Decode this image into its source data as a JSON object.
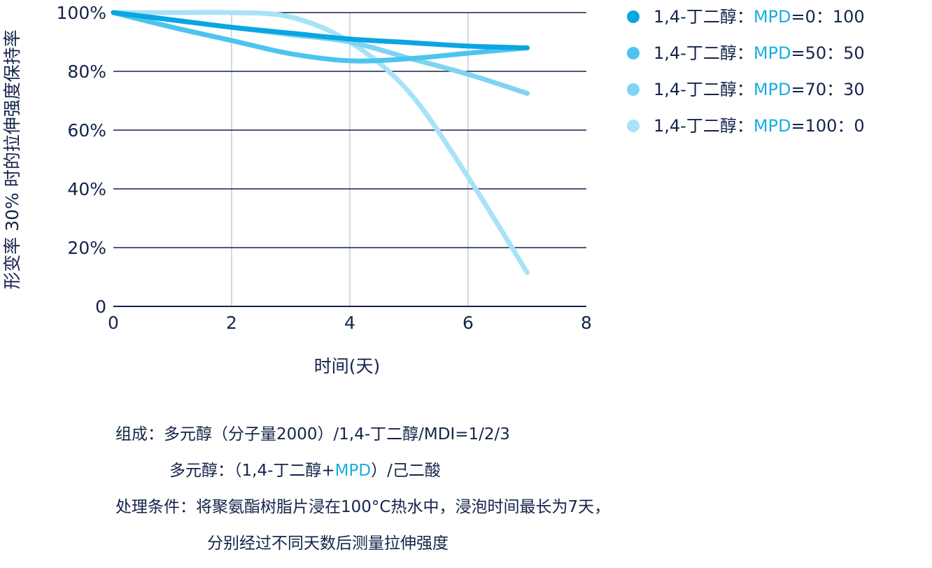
{
  "chart_data": {
    "type": "line",
    "title": "",
    "xlabel": "时间(天)",
    "ylabel": "形变率 30% 时的拉伸强度保持率",
    "xlim": [
      0,
      8
    ],
    "ylim": [
      0,
      100
    ],
    "x_ticks": [
      "0",
      "2",
      "4",
      "6",
      "8"
    ],
    "y_ticks": [
      "0",
      "20%",
      "40%",
      "60%",
      "80%",
      "100%"
    ],
    "grid": "horizontal and vertical",
    "legend_position": "top-right",
    "series": [
      {
        "name": "1,4-丁二醇：MPD=0：100",
        "color": "#0aa6e2",
        "points": [
          [
            0,
            100
          ],
          [
            1,
            97.5
          ],
          [
            2,
            95
          ],
          [
            3,
            93
          ],
          [
            4,
            91
          ],
          [
            5,
            89.8
          ],
          [
            6,
            88.6
          ],
          [
            7,
            88
          ]
        ]
      },
      {
        "name": "1,4-丁二醇：MPD=50：50",
        "color": "#4cc4ee",
        "points": [
          [
            0,
            100
          ],
          [
            1,
            95
          ],
          [
            2,
            90.5
          ],
          [
            3,
            86
          ],
          [
            4,
            83.6
          ],
          [
            5,
            84.3
          ],
          [
            6,
            86.2
          ],
          [
            7,
            88
          ]
        ]
      },
      {
        "name": "1,4-丁二醇：MPD=70：30",
        "color": "#7fd3f3",
        "points": [
          [
            0,
            100
          ],
          [
            1,
            97.5
          ],
          [
            2,
            95
          ],
          [
            3,
            92.5
          ],
          [
            4,
            90
          ],
          [
            5,
            84.5
          ],
          [
            6,
            79
          ],
          [
            7,
            72.5
          ]
        ]
      },
      {
        "name": "1,4-丁二醇：MPD=100：0",
        "color": "#a8e2f8",
        "points": [
          [
            0,
            100
          ],
          [
            1,
            100
          ],
          [
            2,
            100
          ],
          [
            3,
            98.5
          ],
          [
            4,
            90
          ],
          [
            5,
            73
          ],
          [
            6,
            44
          ],
          [
            7,
            11.5
          ]
        ]
      }
    ]
  },
  "legend": [
    {
      "prefix": "1,4-丁二醇：",
      "mpd": "MPD",
      "suffix": "=0：100",
      "color": "#0aa6e2"
    },
    {
      "prefix": "1,4-丁二醇：",
      "mpd": "MPD",
      "suffix": "=50：50",
      "color": "#4cc4ee"
    },
    {
      "prefix": "1,4-丁二醇：",
      "mpd": "MPD",
      "suffix": "=70：30",
      "color": "#7fd3f3"
    },
    {
      "prefix": "1,4-丁二醇：",
      "mpd": "MPD",
      "suffix": "=100：0",
      "color": "#a8e2f8"
    }
  ],
  "notes": {
    "line1": "组成：多元醇（分子量2000）/1,4-丁二醇/MDI=1/2/3",
    "line2_a": "多元醇：（1,4-丁二醇+",
    "line2_mpd": "MPD",
    "line2_b": "）/己二酸",
    "line3": "处理条件：将聚氨酯树脂片浸在100°C热水中，浸泡时间最长为7天，",
    "line4": "分别经过不同天数后测量拉伸强度"
  },
  "colors": {
    "axis": "#14244a",
    "vertical_grid": "#c6ccd8",
    "text": "#14244a",
    "highlight": "#1aaee0"
  }
}
